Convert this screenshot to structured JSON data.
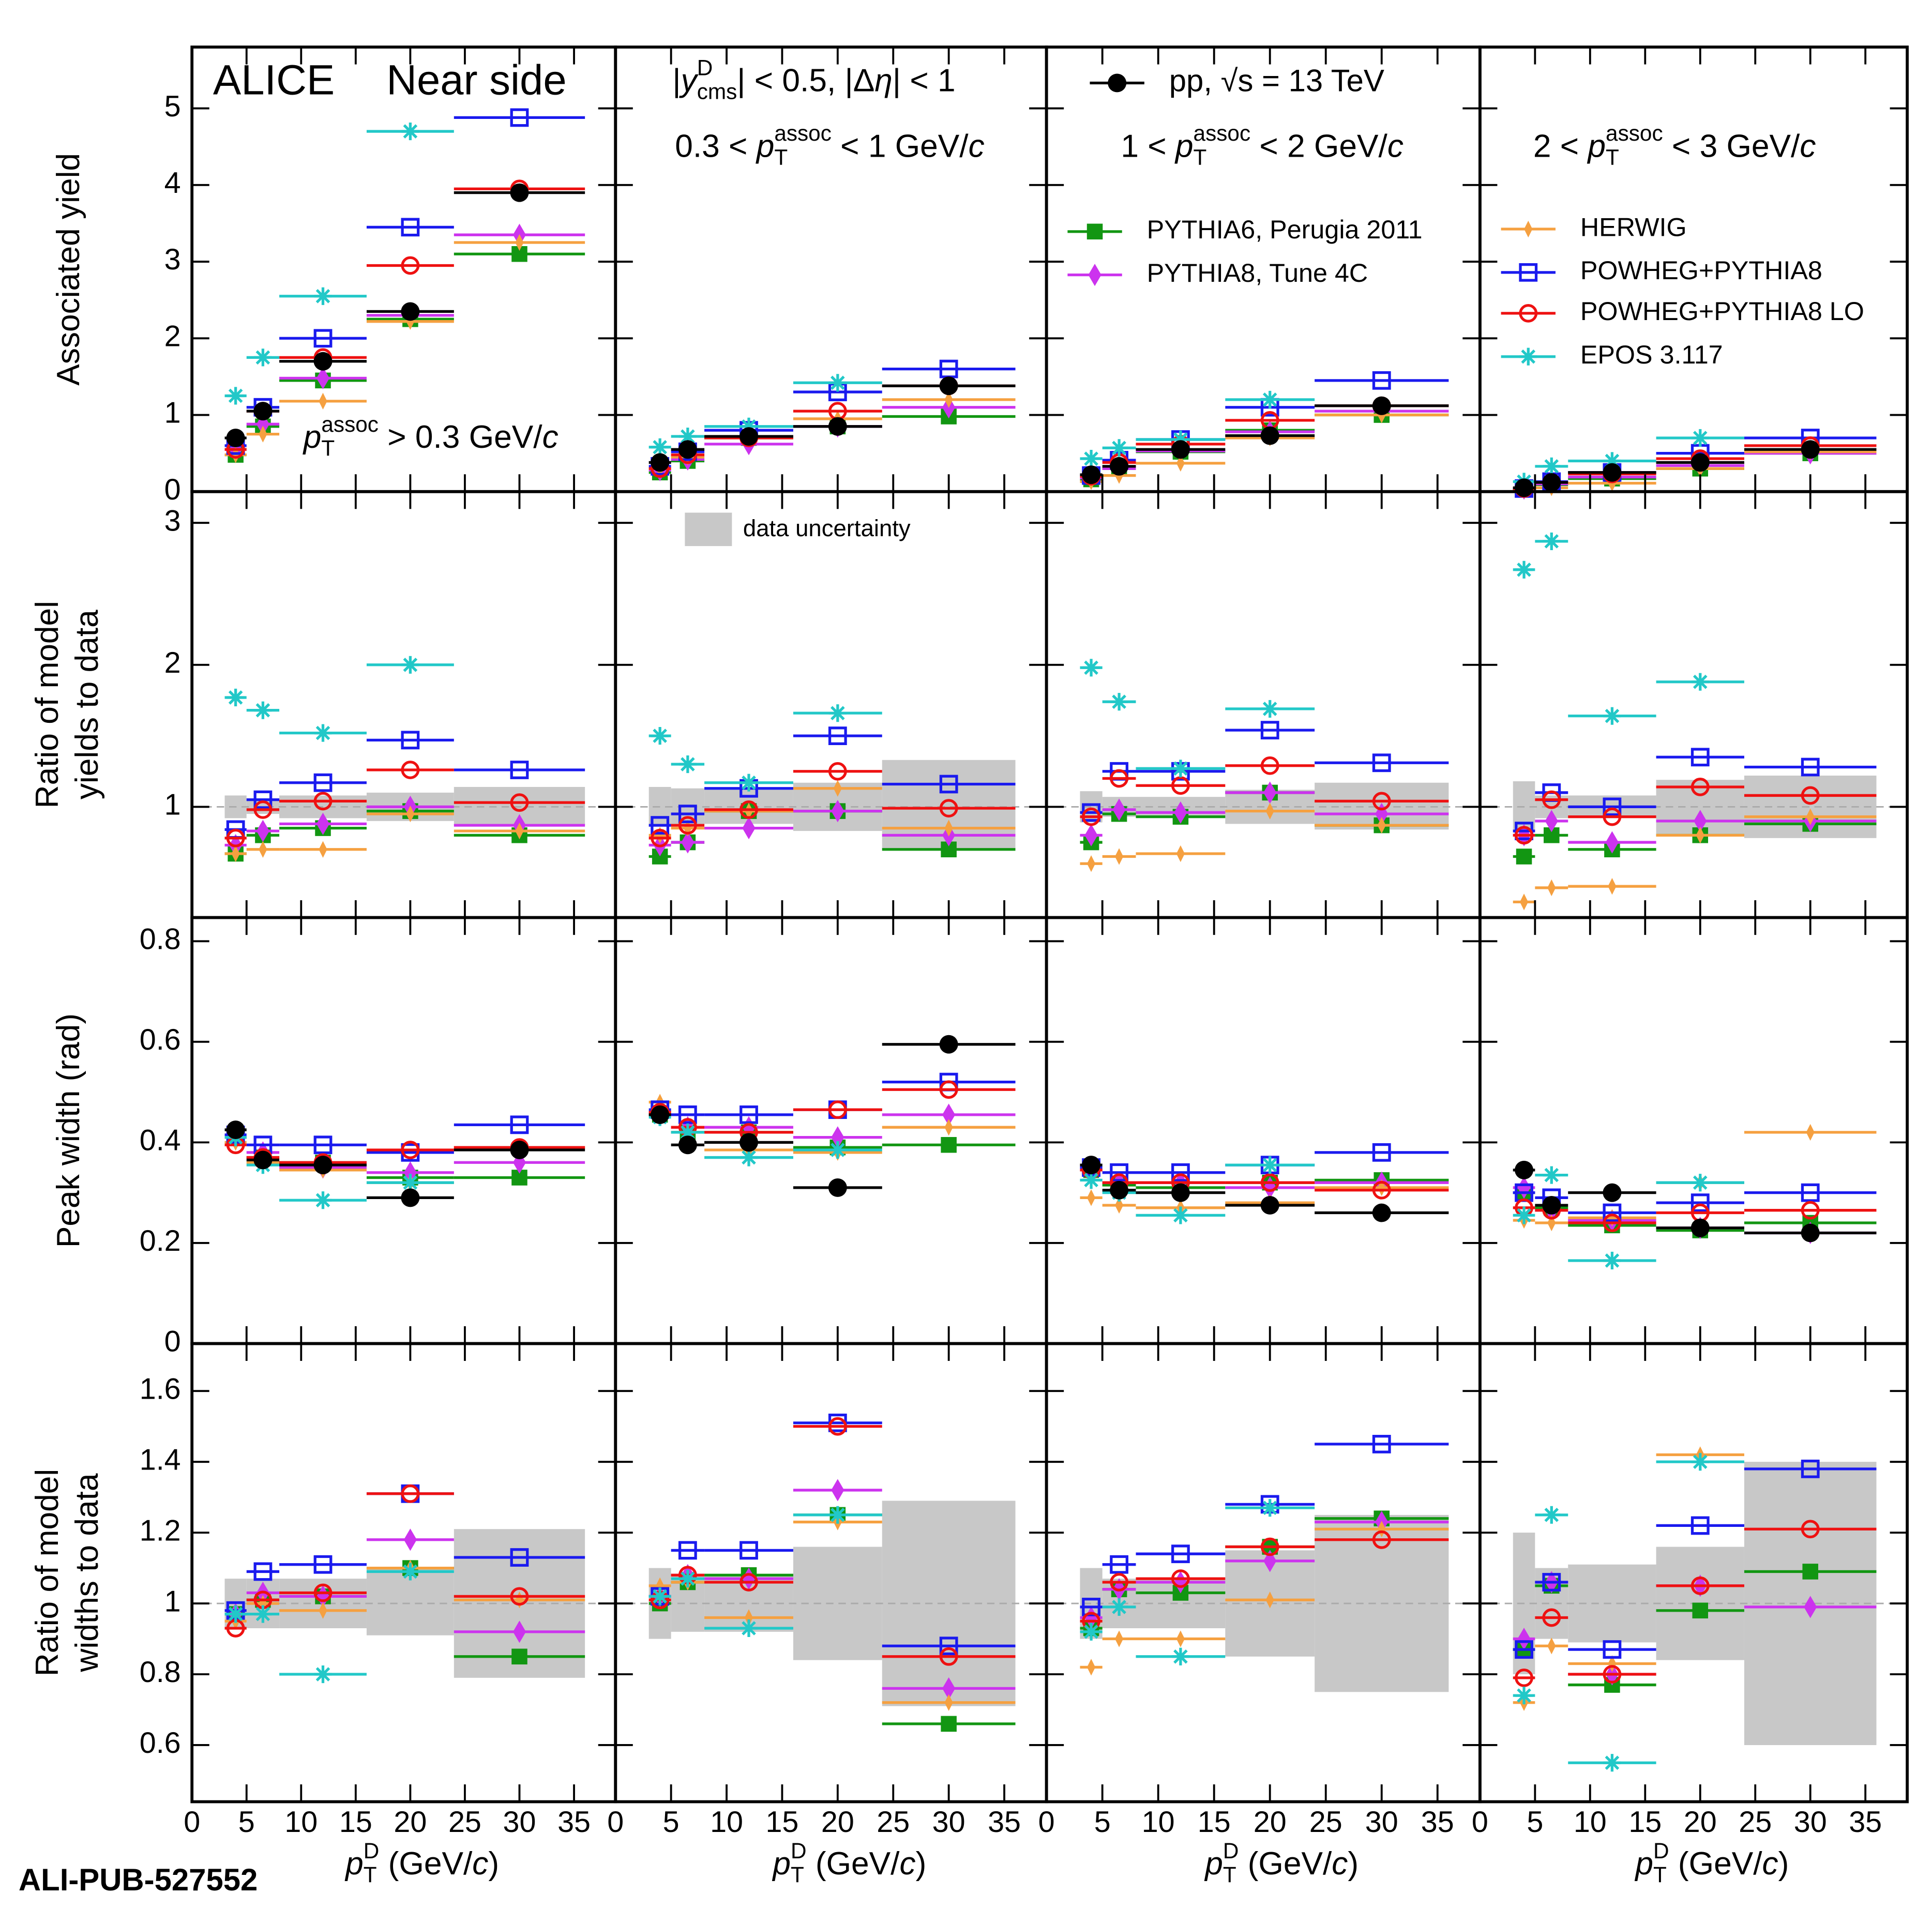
{
  "chart_data": {
    "type": "scatter",
    "watermark": "ALI-PUB-527552",
    "bins": [
      3,
      5,
      8,
      16,
      24,
      36
    ],
    "x": [
      4,
      6.5,
      12,
      20,
      30
    ],
    "xlim": [
      0,
      38.8
    ],
    "xticks": [
      0,
      5,
      10,
      15,
      20,
      25,
      30,
      35
    ],
    "x_label": [
      {
        "text": "p",
        "style": "i"
      },
      {
        "text": "D",
        "style": "sup"
      },
      {
        "text": "T",
        "style": "sub"
      },
      {
        "text": " (GeV/"
      },
      {
        "text": "c",
        "style": "i"
      },
      {
        "text": ")"
      }
    ],
    "rows": [
      {
        "y_label": [
          "Associated yield"
        ],
        "ylim": [
          0,
          5.8
        ],
        "yticks": [
          0,
          1,
          2,
          3,
          4,
          5
        ]
      },
      {
        "y_label": [
          "Ratio of model",
          "yields to data"
        ],
        "ylim": [
          0.22,
          3.22
        ],
        "yticks": [
          1,
          2,
          3
        ],
        "ref_line": 1
      },
      {
        "y_label": [
          "Peak width (rad)"
        ],
        "ylim": [
          0,
          0.847
        ],
        "yticks": [
          0,
          0.2,
          0.4,
          0.6,
          0.8
        ]
      },
      {
        "y_label": [
          "Ratio of model",
          "widths to data"
        ],
        "ylim": [
          0.44,
          1.734
        ],
        "yticks": [
          0.6,
          0.8,
          1,
          1.2,
          1.4,
          1.6
        ],
        "ref_line": 1
      }
    ],
    "annotations": [
      {
        "panel": 0,
        "segments": [
          {
            "text": "ALICE"
          }
        ]
      },
      {
        "panel": 0,
        "segments": [
          {
            "text": "Near side"
          }
        ]
      },
      {
        "panel": 0,
        "segments": [
          {
            "text": "p",
            "style": "i"
          },
          {
            "text": "assoc",
            "style": "sup"
          },
          {
            "text": "T",
            "style": "sub"
          },
          {
            "text": " > 0.3 GeV/"
          },
          {
            "text": "c",
            "style": "i"
          }
        ]
      },
      {
        "panel": 1,
        "segments": [
          {
            "text": "|"
          },
          {
            "text": "y",
            "style": "i"
          },
          {
            "text": "D",
            "style": "sup"
          },
          {
            "text": "cms",
            "style": "sub"
          },
          {
            "text": "| < 0.5, |Δ"
          },
          {
            "text": "η",
            "style": "i"
          },
          {
            "text": "| < 1"
          }
        ]
      },
      {
        "panel": 1,
        "segments": [
          {
            "text": "0.3 < "
          },
          {
            "text": "p",
            "style": "i"
          },
          {
            "text": "assoc",
            "style": "sup"
          },
          {
            "text": "T",
            "style": "sub"
          },
          {
            "text": " < 1 GeV/"
          },
          {
            "text": "c",
            "style": "i"
          }
        ]
      },
      {
        "panel": 2,
        "segments": [
          {
            "text": "1 < "
          },
          {
            "text": "p",
            "style": "i"
          },
          {
            "text": "assoc",
            "style": "sup"
          },
          {
            "text": "T",
            "style": "sub"
          },
          {
            "text": " < 2 GeV/"
          },
          {
            "text": "c",
            "style": "i"
          }
        ]
      },
      {
        "panel": 3,
        "segments": [
          {
            "text": "2 < "
          },
          {
            "text": "p",
            "style": "i"
          },
          {
            "text": "assoc",
            "style": "sup"
          },
          {
            "text": "T",
            "style": "sub"
          },
          {
            "text": " < 3 GeV/"
          },
          {
            "text": "c",
            "style": "i"
          }
        ]
      }
    ],
    "band": {
      "name": "data uncertainty",
      "color": "#c8c8c8",
      "legend_panel": 5,
      "lower": [
        null,
        null,
        null,
        null,
        [
          0.92,
          0.95,
          0.92,
          0.9,
          0.87
        ],
        [
          0.86,
          0.87,
          0.88,
          0.83,
          0.7
        ],
        [
          0.89,
          0.93,
          0.93,
          0.88,
          0.84
        ],
        [
          0.82,
          0.92,
          0.92,
          0.81,
          0.78
        ],
        null,
        null,
        null,
        null,
        [
          0.93,
          0.93,
          0.93,
          0.91,
          0.79
        ],
        [
          0.9,
          0.92,
          0.92,
          0.84,
          0.71
        ],
        [
          0.9,
          0.93,
          0.93,
          0.85,
          0.75
        ],
        [
          0.8,
          0.9,
          0.89,
          0.84,
          0.6
        ]
      ],
      "upper": [
        null,
        null,
        null,
        null,
        [
          1.08,
          1.05,
          1.08,
          1.1,
          1.14
        ],
        [
          1.14,
          1.13,
          1.12,
          1.17,
          1.33
        ],
        [
          1.11,
          1.07,
          1.07,
          1.12,
          1.17
        ],
        [
          1.18,
          1.08,
          1.08,
          1.19,
          1.22
        ],
        null,
        null,
        null,
        null,
        [
          1.07,
          1.07,
          1.07,
          1.1,
          1.21
        ],
        [
          1.1,
          1.08,
          1.08,
          1.16,
          1.29
        ],
        [
          1.1,
          1.07,
          1.07,
          1.15,
          1.25
        ],
        [
          1.2,
          1.1,
          1.11,
          1.16,
          1.4
        ]
      ]
    },
    "series": [
      {
        "name": "pp, √s = 13 TeV",
        "color": "#000000",
        "marker": "circle",
        "legend_panel": 2,
        "values": [
          [
            0.7,
            1.05,
            1.7,
            2.35,
            3.9
          ],
          [
            0.38,
            0.55,
            0.72,
            0.85,
            1.38
          ],
          [
            0.22,
            0.33,
            0.55,
            0.73,
            1.12
          ],
          [
            0.05,
            0.12,
            0.25,
            0.38,
            0.55
          ],
          null,
          null,
          null,
          null,
          [
            0.425,
            0.365,
            0.355,
            0.29,
            0.385
          ],
          [
            0.455,
            0.395,
            0.4,
            0.31,
            0.595
          ],
          [
            0.355,
            0.305,
            0.3,
            0.275,
            0.26
          ],
          [
            0.345,
            0.275,
            0.3,
            0.23,
            0.22
          ],
          null,
          null,
          null,
          null
        ]
      },
      {
        "name": "PYTHIA6, Perugia 2011",
        "color": "#129612",
        "marker": "square",
        "legend_panel": 2,
        "values": [
          [
            0.48,
            0.85,
            1.45,
            2.25,
            3.1
          ],
          [
            0.25,
            0.4,
            0.7,
            0.85,
            0.98
          ],
          [
            0.16,
            0.3,
            0.52,
            0.8,
            1.0
          ],
          [
            0.03,
            0.09,
            0.17,
            0.3,
            0.5
          ],
          [
            0.67,
            0.8,
            0.85,
            0.97,
            0.8
          ],
          [
            0.65,
            0.75,
            0.97,
            0.97,
            0.7
          ],
          [
            0.75,
            0.95,
            0.93,
            1.1,
            0.87
          ],
          [
            0.65,
            0.8,
            0.7,
            0.8,
            0.88
          ],
          [
            0.41,
            0.37,
            0.36,
            0.33,
            0.33
          ],
          [
            0.455,
            0.42,
            0.42,
            0.39,
            0.395
          ],
          [
            0.345,
            0.315,
            0.31,
            0.32,
            0.325
          ],
          [
            0.3,
            0.27,
            0.235,
            0.225,
            0.24
          ],
          [
            0.97,
            1.01,
            1.02,
            1.1,
            0.85
          ],
          [
            1.0,
            1.06,
            1.08,
            1.25,
            0.66
          ],
          [
            0.93,
            1.04,
            1.03,
            1.16,
            1.24
          ],
          [
            0.87,
            1.05,
            0.77,
            0.98,
            1.09
          ]
        ]
      },
      {
        "name": "PYTHIA8, Tune 4C",
        "color": "#cc33ee",
        "marker": "diamond",
        "legend_panel": 2,
        "values": [
          [
            0.55,
            0.88,
            1.48,
            2.3,
            3.35
          ],
          [
            0.28,
            0.42,
            0.62,
            0.85,
            1.1
          ],
          [
            0.18,
            0.3,
            0.53,
            0.78,
            1.05
          ],
          [
            0.04,
            0.1,
            0.19,
            0.34,
            0.5
          ],
          [
            0.73,
            0.83,
            0.88,
            1.0,
            0.87
          ],
          [
            0.73,
            0.75,
            0.85,
            0.97,
            0.8
          ],
          [
            0.8,
            0.98,
            0.96,
            1.1,
            0.95
          ],
          [
            0.8,
            0.9,
            0.75,
            0.9,
            0.9
          ],
          [
            0.41,
            0.38,
            0.35,
            0.34,
            0.36
          ],
          [
            0.46,
            0.43,
            0.43,
            0.41,
            0.455
          ],
          [
            0.345,
            0.32,
            0.32,
            0.31,
            0.32
          ],
          [
            0.31,
            0.265,
            0.245,
            0.23,
            0.22
          ],
          [
            0.97,
            1.03,
            1.02,
            1.18,
            0.92
          ],
          [
            1.02,
            1.08,
            1.07,
            1.32,
            0.76
          ],
          [
            0.96,
            1.04,
            1.06,
            1.12,
            1.23
          ],
          [
            0.9,
            1.06,
            0.8,
            1.05,
            0.99
          ]
        ]
      },
      {
        "name": "HERWIG",
        "color": "#f5a040",
        "marker": "thin-diamond",
        "legend_panel": 3,
        "values": [
          [
            0.48,
            0.75,
            1.18,
            2.22,
            3.25
          ],
          [
            0.3,
            0.45,
            0.8,
            0.95,
            1.2
          ],
          [
            0.13,
            0.21,
            0.37,
            0.7,
            1.0
          ],
          [
            0.02,
            0.05,
            0.11,
            0.3,
            0.52
          ],
          [
            0.67,
            0.7,
            0.7,
            0.95,
            0.83
          ],
          [
            0.8,
            0.85,
            0.97,
            1.13,
            0.85
          ],
          [
            0.6,
            0.65,
            0.67,
            0.97,
            0.87
          ],
          [
            0.33,
            0.43,
            0.44,
            0.8,
            0.93
          ],
          [
            0.4,
            0.36,
            0.345,
            0.32,
            0.39
          ],
          [
            0.48,
            0.42,
            0.385,
            0.38,
            0.43
          ],
          [
            0.29,
            0.275,
            0.27,
            0.28,
            0.31
          ],
          [
            0.245,
            0.24,
            0.25,
            0.32,
            0.42
          ],
          [
            0.95,
            1.0,
            0.98,
            1.1,
            1.01
          ],
          [
            1.05,
            1.06,
            0.96,
            1.23,
            0.72
          ],
          [
            0.82,
            0.9,
            0.9,
            1.01,
            1.21
          ],
          [
            0.72,
            0.88,
            0.83,
            1.42,
            null
          ]
        ]
      },
      {
        "name": "POWHEG+PYTHIA8",
        "color": "#1a1aee",
        "marker": "open-square",
        "legend_panel": 3,
        "values": [
          [
            0.6,
            1.1,
            2.0,
            3.45,
            4.88
          ],
          [
            0.33,
            0.52,
            0.8,
            1.3,
            1.6
          ],
          [
            0.21,
            0.41,
            0.68,
            1.1,
            1.45
          ],
          [
            0.04,
            0.13,
            0.25,
            0.5,
            0.7
          ],
          [
            0.84,
            1.05,
            1.17,
            1.47,
            1.26
          ],
          [
            0.87,
            0.95,
            1.13,
            1.5,
            1.16
          ],
          [
            0.96,
            1.25,
            1.25,
            1.54,
            1.31
          ],
          [
            0.83,
            1.1,
            1.0,
            1.35,
            1.28
          ],
          [
            0.415,
            0.395,
            0.395,
            0.38,
            0.435
          ],
          [
            0.465,
            0.455,
            0.455,
            0.465,
            0.52
          ],
          [
            0.35,
            0.34,
            0.34,
            0.355,
            0.38
          ],
          [
            0.3,
            0.29,
            0.26,
            0.28,
            0.3
          ],
          [
            0.98,
            1.09,
            1.11,
            1.31,
            1.13
          ],
          [
            1.02,
            1.15,
            1.15,
            1.51,
            0.88
          ],
          [
            0.99,
            1.11,
            1.14,
            1.28,
            1.45
          ],
          [
            0.87,
            1.06,
            0.87,
            1.22,
            1.38
          ]
        ]
      },
      {
        "name": "POWHEG+PYTHIA8 LO",
        "color": "#ee1111",
        "marker": "open-circle",
        "legend_panel": 3,
        "values": [
          [
            0.55,
            1.05,
            1.75,
            2.95,
            3.95
          ],
          [
            0.3,
            0.48,
            0.7,
            1.05,
            1.38
          ],
          [
            0.2,
            0.38,
            0.62,
            0.93,
            1.12
          ],
          [
            0.04,
            0.12,
            0.23,
            0.43,
            0.6
          ],
          [
            0.78,
            0.98,
            1.04,
            1.26,
            1.03
          ],
          [
            0.78,
            0.87,
            0.98,
            1.25,
            0.99
          ],
          [
            0.93,
            1.2,
            1.15,
            1.29,
            1.04
          ],
          [
            0.8,
            1.05,
            0.93,
            1.14,
            1.08
          ],
          [
            0.395,
            0.37,
            0.36,
            0.385,
            0.39
          ],
          [
            0.46,
            0.43,
            0.42,
            0.465,
            0.505
          ],
          [
            0.345,
            0.32,
            0.32,
            0.32,
            0.305
          ],
          [
            0.27,
            0.265,
            0.24,
            0.26,
            0.265
          ],
          [
            0.93,
            1.01,
            1.03,
            1.31,
            1.02
          ],
          [
            1.01,
            1.08,
            1.06,
            1.5,
            0.85
          ],
          [
            0.95,
            1.06,
            1.07,
            1.16,
            1.18
          ],
          [
            0.79,
            0.96,
            0.8,
            1.05,
            1.21
          ]
        ]
      },
      {
        "name": "EPOS 3.117",
        "color": "#22c8c8",
        "marker": "asterisk",
        "legend_panel": 3,
        "values": [
          [
            1.25,
            1.75,
            2.55,
            4.7,
            null
          ],
          [
            0.58,
            0.72,
            0.85,
            1.42,
            null
          ],
          [
            0.43,
            0.57,
            0.68,
            1.2,
            null
          ],
          [
            0.13,
            0.33,
            0.4,
            0.7,
            null
          ],
          [
            1.77,
            1.68,
            1.52,
            2.0,
            null
          ],
          [
            1.5,
            1.3,
            1.17,
            1.66,
            null
          ],
          [
            1.98,
            1.74,
            1.27,
            1.69,
            null
          ],
          [
            2.67,
            2.87,
            1.64,
            1.88,
            null
          ],
          [
            0.41,
            0.355,
            0.285,
            0.32,
            null
          ],
          [
            0.45,
            0.42,
            0.37,
            0.385,
            null
          ],
          [
            0.325,
            0.3,
            0.255,
            0.355,
            null
          ],
          [
            0.255,
            0.335,
            0.165,
            0.32,
            null
          ],
          [
            0.97,
            0.97,
            0.8,
            1.09,
            null
          ],
          [
            1.02,
            1.07,
            0.93,
            1.25,
            null
          ],
          [
            0.92,
            0.99,
            0.85,
            1.27,
            null
          ],
          [
            0.74,
            1.25,
            0.55,
            1.4,
            null
          ]
        ]
      }
    ]
  }
}
